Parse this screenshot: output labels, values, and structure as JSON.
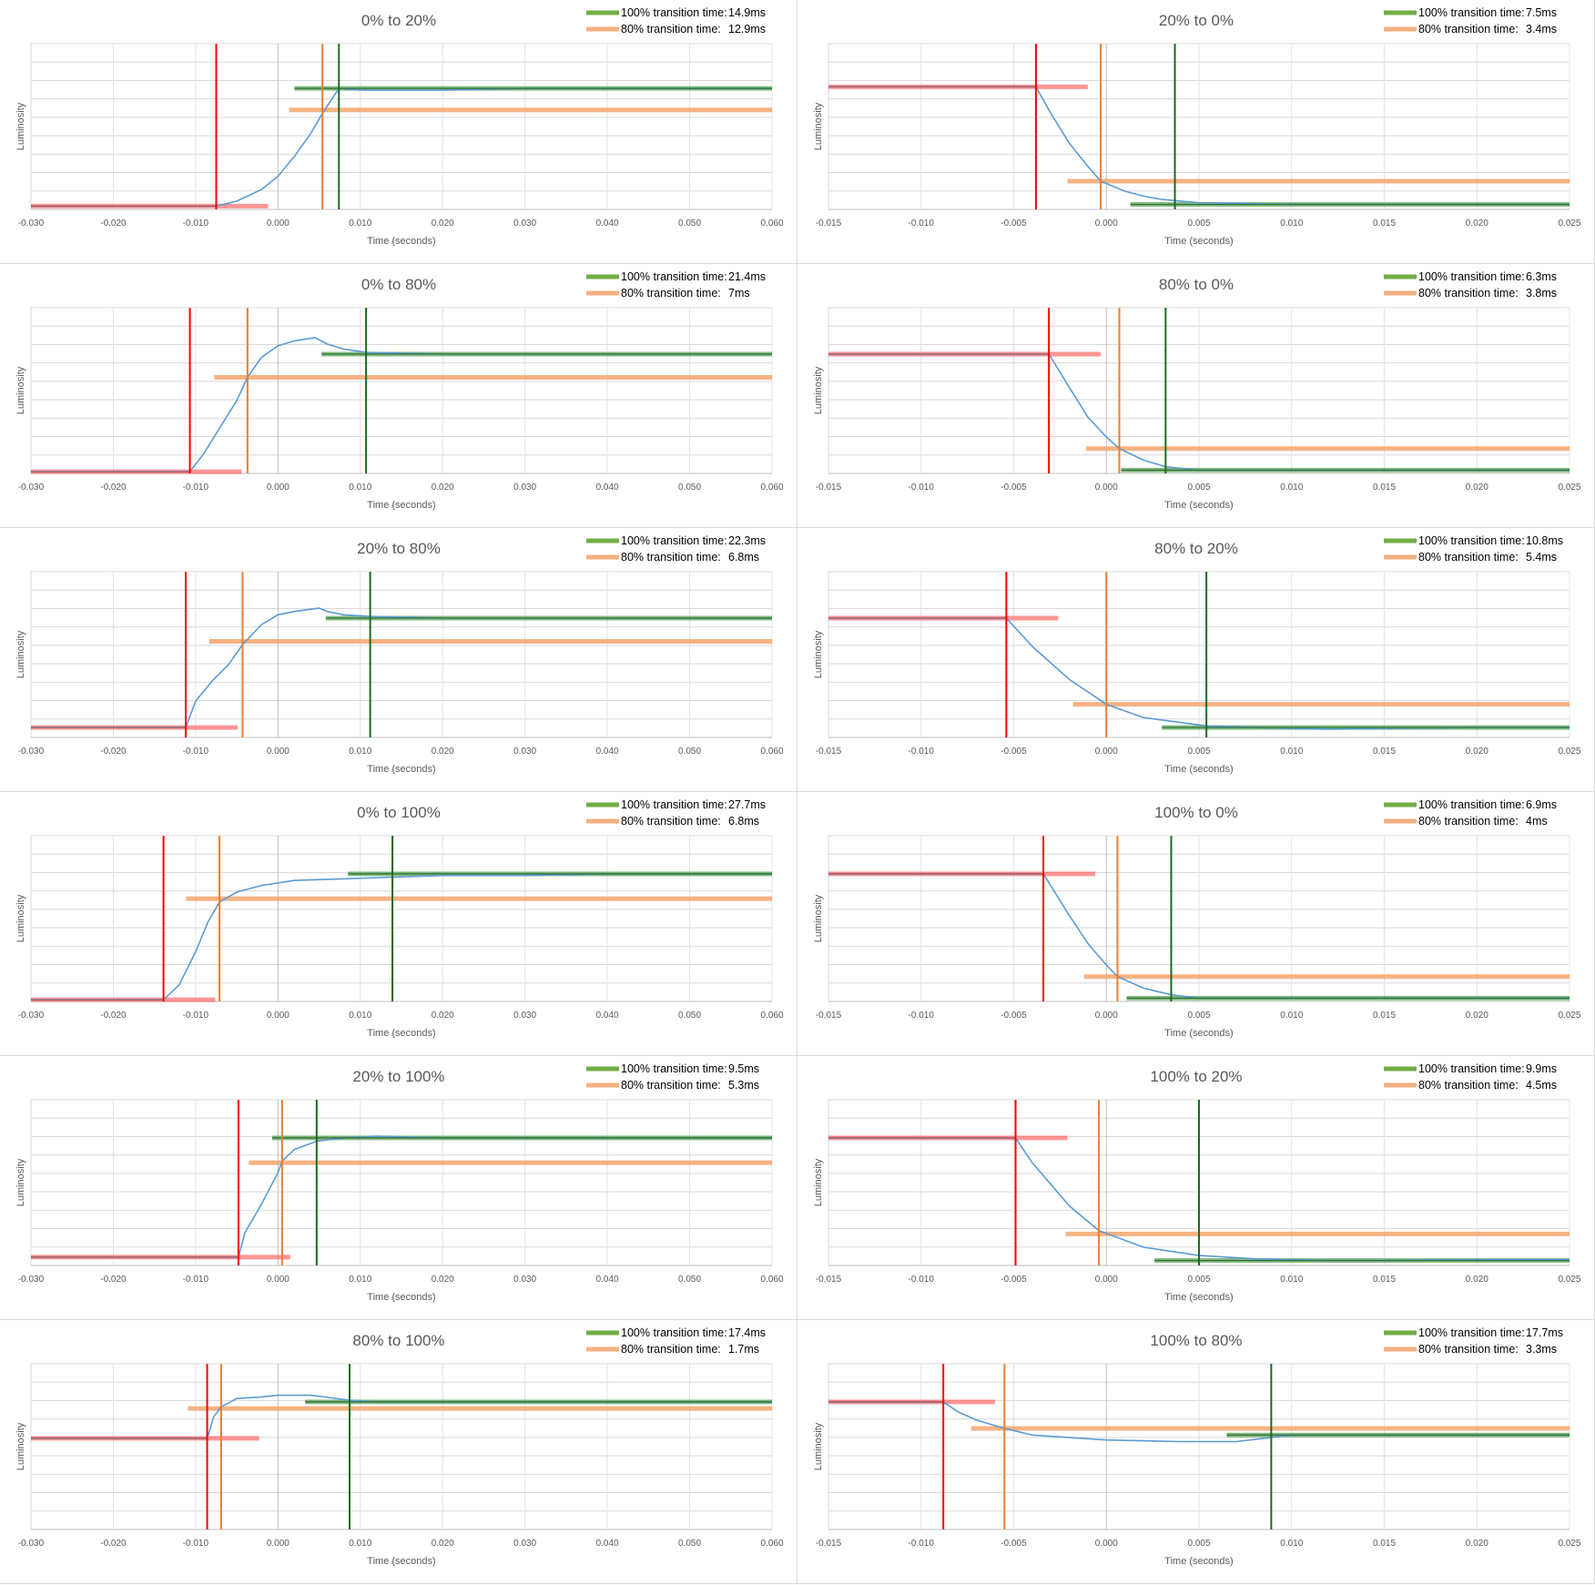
{
  "chart_data": [
    {
      "type": "line",
      "title": "0% to 20%",
      "xlabel": "Time (seconds)",
      "ylabel": "Luminosity",
      "xlim": [
        -0.03,
        0.06
      ],
      "xticks": [
        -0.03,
        -0.02,
        -0.01,
        0.0,
        0.01,
        0.02,
        0.03,
        0.04,
        0.05,
        0.06
      ],
      "tick_labels": [
        "-0.030",
        "-0.020",
        "-0.010",
        "0.000",
        "0.010",
        "0.020",
        "0.030",
        "0.040",
        "0.050",
        "0.060"
      ],
      "direction": "rise",
      "legend": [
        {
          "label": "100% transition time:",
          "value": "14.9ms",
          "color": "#70ad47"
        },
        {
          "label": "80% transition time:",
          "value": "12.9ms",
          "color": "#f4b183"
        }
      ],
      "start_time": -0.0075,
      "t80_time": 0.0054,
      "t100_time": 0.0074,
      "start_level": 0.02,
      "end_level": 0.73,
      "t80_level": 0.6,
      "curve": {
        "x": [
          -0.03,
          -0.0075,
          -0.005,
          -0.002,
          0.0,
          0.002,
          0.004,
          0.0054,
          0.0074,
          0.01,
          0.02,
          0.03,
          0.04,
          0.05,
          0.06
        ],
        "y": [
          0.02,
          0.02,
          0.05,
          0.12,
          0.2,
          0.32,
          0.46,
          0.58,
          0.73,
          0.72,
          0.72,
          0.73,
          0.73,
          0.73,
          0.73
        ]
      }
    },
    {
      "type": "line",
      "title": "20% to 0%",
      "xlabel": "Time (seconds)",
      "ylabel": "Luminosity",
      "xlim": [
        -0.015,
        0.025
      ],
      "xticks": [
        -0.015,
        -0.01,
        -0.005,
        0.0,
        0.005,
        0.01,
        0.015,
        0.02,
        0.025
      ],
      "tick_labels": [
        "-0.015",
        "-0.010",
        "-0.005",
        "0.000",
        "0.005",
        "0.010",
        "0.015",
        "0.020",
        "0.025"
      ],
      "direction": "fall",
      "legend": [
        {
          "label": "100% transition time:",
          "value": "7.5ms",
          "color": "#70ad47"
        },
        {
          "label": "80% transition time:",
          "value": "3.4ms",
          "color": "#f4b183"
        }
      ],
      "start_time": -0.0038,
      "t80_time": -0.0003,
      "t100_time": 0.0037,
      "start_level": 0.74,
      "end_level": 0.03,
      "t80_level": 0.17,
      "curve": {
        "x": [
          -0.015,
          -0.0038,
          -0.003,
          -0.002,
          -0.001,
          -0.0003,
          0.001,
          0.002,
          0.003,
          0.005,
          0.01,
          0.015,
          0.02,
          0.025
        ],
        "y": [
          0.74,
          0.74,
          0.58,
          0.4,
          0.26,
          0.17,
          0.11,
          0.08,
          0.06,
          0.04,
          0.03,
          0.03,
          0.03,
          0.03
        ]
      }
    },
    {
      "type": "line",
      "title": "0% to 80%",
      "xlabel": "Time (seconds)",
      "ylabel": "Luminosity",
      "xlim": [
        -0.03,
        0.06
      ],
      "xticks": [
        -0.03,
        -0.02,
        -0.01,
        0.0,
        0.01,
        0.02,
        0.03,
        0.04,
        0.05,
        0.06
      ],
      "tick_labels": [
        "-0.030",
        "-0.020",
        "-0.010",
        "0.000",
        "0.010",
        "0.020",
        "0.030",
        "0.040",
        "0.050",
        "0.060"
      ],
      "direction": "rise",
      "legend": [
        {
          "label": "100% transition time:",
          "value": "21.4ms",
          "color": "#70ad47"
        },
        {
          "label": "80% transition time:",
          "value": "7ms",
          "color": "#f4b183"
        }
      ],
      "start_time": -0.0107,
      "t80_time": -0.0037,
      "t100_time": 0.0107,
      "start_level": 0.01,
      "end_level": 0.72,
      "t80_level": 0.58,
      "curve": {
        "x": [
          -0.03,
          -0.0107,
          -0.009,
          -0.007,
          -0.005,
          -0.0037,
          -0.002,
          0.0,
          0.002,
          0.0045,
          0.006,
          0.008,
          0.0107,
          0.02,
          0.03,
          0.04,
          0.05,
          0.06
        ],
        "y": [
          0.01,
          0.01,
          0.12,
          0.28,
          0.44,
          0.58,
          0.7,
          0.77,
          0.8,
          0.82,
          0.78,
          0.75,
          0.73,
          0.72,
          0.72,
          0.72,
          0.72,
          0.72
        ]
      }
    },
    {
      "type": "line",
      "title": "80% to 0%",
      "xlabel": "Time (seconds)",
      "ylabel": "Luminosity",
      "xlim": [
        -0.015,
        0.025
      ],
      "xticks": [
        -0.015,
        -0.01,
        -0.005,
        0.0,
        0.005,
        0.01,
        0.015,
        0.02,
        0.025
      ],
      "tick_labels": [
        "-0.015",
        "-0.010",
        "-0.005",
        "0.000",
        "0.005",
        "0.010",
        "0.015",
        "0.020",
        "0.025"
      ],
      "direction": "fall",
      "legend": [
        {
          "label": "100% transition time:",
          "value": "6.3ms",
          "color": "#70ad47"
        },
        {
          "label": "80% transition time:",
          "value": "3.8ms",
          "color": "#f4b183"
        }
      ],
      "start_time": -0.0031,
      "t80_time": 0.0007,
      "t100_time": 0.0032,
      "start_level": 0.72,
      "end_level": 0.02,
      "t80_level": 0.15,
      "curve": {
        "x": [
          -0.015,
          -0.0031,
          -0.002,
          -0.001,
          0.0,
          0.0007,
          0.002,
          0.0032,
          0.005,
          0.01,
          0.015,
          0.02,
          0.025
        ],
        "y": [
          0.72,
          0.72,
          0.52,
          0.34,
          0.22,
          0.15,
          0.08,
          0.04,
          0.02,
          0.02,
          0.02,
          0.02,
          0.02
        ]
      }
    },
    {
      "type": "line",
      "title": "20% to 80%",
      "xlabel": "Time (seconds)",
      "ylabel": "Luminosity",
      "xlim": [
        -0.03,
        0.06
      ],
      "xticks": [
        -0.03,
        -0.02,
        -0.01,
        0.0,
        0.01,
        0.02,
        0.03,
        0.04,
        0.05,
        0.06
      ],
      "tick_labels": [
        "-0.030",
        "-0.020",
        "-0.010",
        "0.000",
        "0.010",
        "0.020",
        "0.030",
        "0.040",
        "0.050",
        "0.060"
      ],
      "direction": "rise",
      "legend": [
        {
          "label": "100% transition time:",
          "value": "22.3ms",
          "color": "#70ad47"
        },
        {
          "label": "80% transition time:",
          "value": "6.8ms",
          "color": "#f4b183"
        }
      ],
      "start_time": -0.0112,
      "t80_time": -0.0043,
      "t100_time": 0.0112,
      "start_level": 0.06,
      "end_level": 0.72,
      "t80_level": 0.58,
      "curve": {
        "x": [
          -0.03,
          -0.0112,
          -0.01,
          -0.008,
          -0.006,
          -0.0043,
          -0.002,
          0.0,
          0.002,
          0.005,
          0.006,
          0.008,
          0.0112,
          0.02,
          0.03,
          0.04,
          0.05,
          0.06
        ],
        "y": [
          0.06,
          0.06,
          0.22,
          0.34,
          0.44,
          0.56,
          0.68,
          0.74,
          0.76,
          0.78,
          0.76,
          0.74,
          0.73,
          0.72,
          0.72,
          0.72,
          0.72,
          0.72
        ]
      }
    },
    {
      "type": "line",
      "title": "80% to 20%",
      "xlabel": "Time (seconds)",
      "ylabel": "Luminosity",
      "xlim": [
        -0.015,
        0.025
      ],
      "xticks": [
        -0.015,
        -0.01,
        -0.005,
        0.0,
        0.005,
        0.01,
        0.015,
        0.02,
        0.025
      ],
      "tick_labels": [
        "-0.015",
        "-0.010",
        "-0.005",
        "0.000",
        "0.005",
        "0.010",
        "0.015",
        "0.020",
        "0.025"
      ],
      "direction": "fall",
      "legend": [
        {
          "label": "100% transition time:",
          "value": "10.8ms",
          "color": "#70ad47"
        },
        {
          "label": "80% transition time:",
          "value": "5.4ms",
          "color": "#f4b183"
        }
      ],
      "start_time": -0.0054,
      "t80_time": 0.0,
      "t100_time": 0.0054,
      "start_level": 0.72,
      "end_level": 0.06,
      "t80_level": 0.2,
      "curve": {
        "x": [
          -0.015,
          -0.0054,
          -0.004,
          -0.002,
          0.0,
          0.002,
          0.0054,
          0.008,
          0.012,
          0.015,
          0.02,
          0.025
        ],
        "y": [
          0.72,
          0.72,
          0.55,
          0.35,
          0.2,
          0.12,
          0.07,
          0.06,
          0.05,
          0.055,
          0.06,
          0.06
        ]
      }
    },
    {
      "type": "line",
      "title": "0% to 100%",
      "xlabel": "Time (seconds)",
      "ylabel": "Luminosity",
      "xlim": [
        -0.03,
        0.06
      ],
      "xticks": [
        -0.03,
        -0.02,
        -0.01,
        0.0,
        0.01,
        0.02,
        0.03,
        0.04,
        0.05,
        0.06
      ],
      "tick_labels": [
        "-0.030",
        "-0.020",
        "-0.010",
        "0.000",
        "0.010",
        "0.020",
        "0.030",
        "0.040",
        "0.050",
        "0.060"
      ],
      "direction": "rise",
      "legend": [
        {
          "label": "100% transition time:",
          "value": "27.7ms",
          "color": "#70ad47"
        },
        {
          "label": "80% transition time:",
          "value": "6.8ms",
          "color": "#f4b183"
        }
      ],
      "start_time": -0.0139,
      "t80_time": -0.0071,
      "t100_time": 0.0139,
      "start_level": 0.01,
      "end_level": 0.77,
      "t80_level": 0.62,
      "curve": {
        "x": [
          -0.03,
          -0.0139,
          -0.012,
          -0.01,
          -0.0085,
          -0.0071,
          -0.005,
          -0.002,
          0.002,
          0.0139,
          0.02,
          0.03,
          0.04,
          0.05,
          0.06
        ],
        "y": [
          0.01,
          0.01,
          0.1,
          0.3,
          0.48,
          0.6,
          0.66,
          0.7,
          0.73,
          0.75,
          0.76,
          0.76,
          0.77,
          0.77,
          0.77
        ]
      }
    },
    {
      "type": "line",
      "title": "100% to 0%",
      "xlabel": "Time (seconds)",
      "ylabel": "Luminosity",
      "xlim": [
        -0.015,
        0.025
      ],
      "xticks": [
        -0.015,
        -0.01,
        -0.005,
        0.0,
        0.005,
        0.01,
        0.015,
        0.02,
        0.025
      ],
      "tick_labels": [
        "-0.015",
        "-0.010",
        "-0.005",
        "0.000",
        "0.005",
        "0.010",
        "0.015",
        "0.020",
        "0.025"
      ],
      "direction": "fall",
      "legend": [
        {
          "label": "100% transition time:",
          "value": "6.9ms",
          "color": "#70ad47"
        },
        {
          "label": "80% transition time:",
          "value": "4ms",
          "color": "#f4b183"
        }
      ],
      "start_time": -0.0034,
      "t80_time": 0.0006,
      "t100_time": 0.0035,
      "start_level": 0.77,
      "end_level": 0.02,
      "t80_level": 0.15,
      "curve": {
        "x": [
          -0.015,
          -0.0034,
          -0.002,
          -0.001,
          0.0,
          0.0006,
          0.002,
          0.0035,
          0.005,
          0.01,
          0.015,
          0.02,
          0.025
        ],
        "y": [
          0.77,
          0.77,
          0.52,
          0.35,
          0.22,
          0.15,
          0.08,
          0.04,
          0.02,
          0.02,
          0.02,
          0.02,
          0.02
        ]
      }
    },
    {
      "type": "line",
      "title": "20% to 100%",
      "xlabel": "Time (seconds)",
      "ylabel": "Luminosity",
      "xlim": [
        -0.03,
        0.06
      ],
      "xticks": [
        -0.03,
        -0.02,
        -0.01,
        0.0,
        0.01,
        0.02,
        0.03,
        0.04,
        0.05,
        0.06
      ],
      "tick_labels": [
        "-0.030",
        "-0.020",
        "-0.010",
        "0.000",
        "0.010",
        "0.020",
        "0.030",
        "0.040",
        "0.050",
        "0.060"
      ],
      "direction": "rise",
      "legend": [
        {
          "label": "100% transition time:",
          "value": "9.5ms",
          "color": "#70ad47"
        },
        {
          "label": "80% transition time:",
          "value": "5.3ms",
          "color": "#f4b183"
        }
      ],
      "start_time": -0.0048,
      "t80_time": 0.0005,
      "t100_time": 0.0047,
      "start_level": 0.05,
      "end_level": 0.77,
      "t80_level": 0.62,
      "curve": {
        "x": [
          -0.03,
          -0.0048,
          -0.004,
          -0.002,
          0.0,
          0.0005,
          0.002,
          0.0047,
          0.008,
          0.012,
          0.02,
          0.03,
          0.04,
          0.05,
          0.06
        ],
        "y": [
          0.05,
          0.05,
          0.2,
          0.37,
          0.56,
          0.63,
          0.7,
          0.75,
          0.77,
          0.78,
          0.77,
          0.77,
          0.77,
          0.77,
          0.77
        ]
      }
    },
    {
      "type": "line",
      "title": "100% to 20%",
      "xlabel": "Time (seconds)",
      "ylabel": "Luminosity",
      "xlim": [
        -0.015,
        0.025
      ],
      "xticks": [
        -0.015,
        -0.01,
        -0.005,
        0.0,
        0.005,
        0.01,
        0.015,
        0.02,
        0.025
      ],
      "tick_labels": [
        "-0.015",
        "-0.010",
        "-0.005",
        "0.000",
        "0.005",
        "0.010",
        "0.015",
        "0.020",
        "0.025"
      ],
      "direction": "fall",
      "legend": [
        {
          "label": "100% transition time:",
          "value": "9.9ms",
          "color": "#70ad47"
        },
        {
          "label": "80% transition time:",
          "value": "4.5ms",
          "color": "#f4b183"
        }
      ],
      "start_time": -0.0049,
      "t80_time": -0.0004,
      "t100_time": 0.005,
      "start_level": 0.77,
      "end_level": 0.03,
      "t80_level": 0.19,
      "curve": {
        "x": [
          -0.015,
          -0.0049,
          -0.004,
          -0.002,
          -0.0004,
          0.002,
          0.005,
          0.008,
          0.012,
          0.015,
          0.02,
          0.025
        ],
        "y": [
          0.77,
          0.77,
          0.62,
          0.36,
          0.21,
          0.11,
          0.06,
          0.04,
          0.03,
          0.03,
          0.035,
          0.035
        ]
      }
    },
    {
      "type": "line",
      "title": "80% to 100%",
      "xlabel": "Time (seconds)",
      "ylabel": "Luminosity",
      "xlim": [
        -0.03,
        0.06
      ],
      "xticks": [
        -0.03,
        -0.02,
        -0.01,
        0.0,
        0.01,
        0.02,
        0.03,
        0.04,
        0.05,
        0.06
      ],
      "tick_labels": [
        "-0.030",
        "-0.020",
        "-0.010",
        "0.000",
        "0.010",
        "0.020",
        "0.030",
        "0.040",
        "0.050",
        "0.060"
      ],
      "direction": "rise",
      "legend": [
        {
          "label": "100% transition time:",
          "value": "17.4ms",
          "color": "#70ad47"
        },
        {
          "label": "80% transition time:",
          "value": "1.7ms",
          "color": "#f4b183"
        }
      ],
      "start_time": -0.0086,
      "t80_time": -0.0069,
      "t100_time": 0.0087,
      "start_level": 0.55,
      "end_level": 0.77,
      "t80_level": 0.73,
      "curve": {
        "x": [
          -0.03,
          -0.0086,
          -0.0078,
          -0.0069,
          -0.005,
          -0.002,
          0.0,
          0.004,
          0.0087,
          0.012,
          0.02,
          0.03,
          0.04,
          0.05,
          0.06
        ],
        "y": [
          0.55,
          0.55,
          0.68,
          0.74,
          0.79,
          0.8,
          0.81,
          0.81,
          0.78,
          0.77,
          0.77,
          0.77,
          0.77,
          0.77,
          0.77
        ]
      }
    },
    {
      "type": "line",
      "title": "100% to 80%",
      "xlabel": "Time (seconds)",
      "ylabel": "Luminosity",
      "xlim": [
        -0.015,
        0.025
      ],
      "xticks": [
        -0.015,
        -0.01,
        -0.005,
        0.0,
        0.005,
        0.01,
        0.015,
        0.02,
        0.025
      ],
      "tick_labels": [
        "-0.015",
        "-0.010",
        "-0.005",
        "0.000",
        "0.005",
        "0.010",
        "0.015",
        "0.020",
        "0.025"
      ],
      "direction": "fall",
      "legend": [
        {
          "label": "100% transition time:",
          "value": "17.7ms",
          "color": "#70ad47"
        },
        {
          "label": "80% transition time:",
          "value": "3.3ms",
          "color": "#f4b183"
        }
      ],
      "start_time": -0.0088,
      "t80_time": -0.0055,
      "t100_time": 0.0089,
      "start_level": 0.77,
      "end_level": 0.57,
      "t80_level": 0.61,
      "curve": {
        "x": [
          -0.015,
          -0.0088,
          -0.008,
          -0.007,
          -0.0055,
          -0.004,
          0.0,
          0.004,
          0.007,
          0.0085,
          0.01,
          0.015,
          0.02,
          0.025
        ],
        "y": [
          0.77,
          0.77,
          0.71,
          0.66,
          0.61,
          0.57,
          0.54,
          0.53,
          0.53,
          0.55,
          0.57,
          0.57,
          0.57,
          0.57
        ]
      }
    }
  ]
}
